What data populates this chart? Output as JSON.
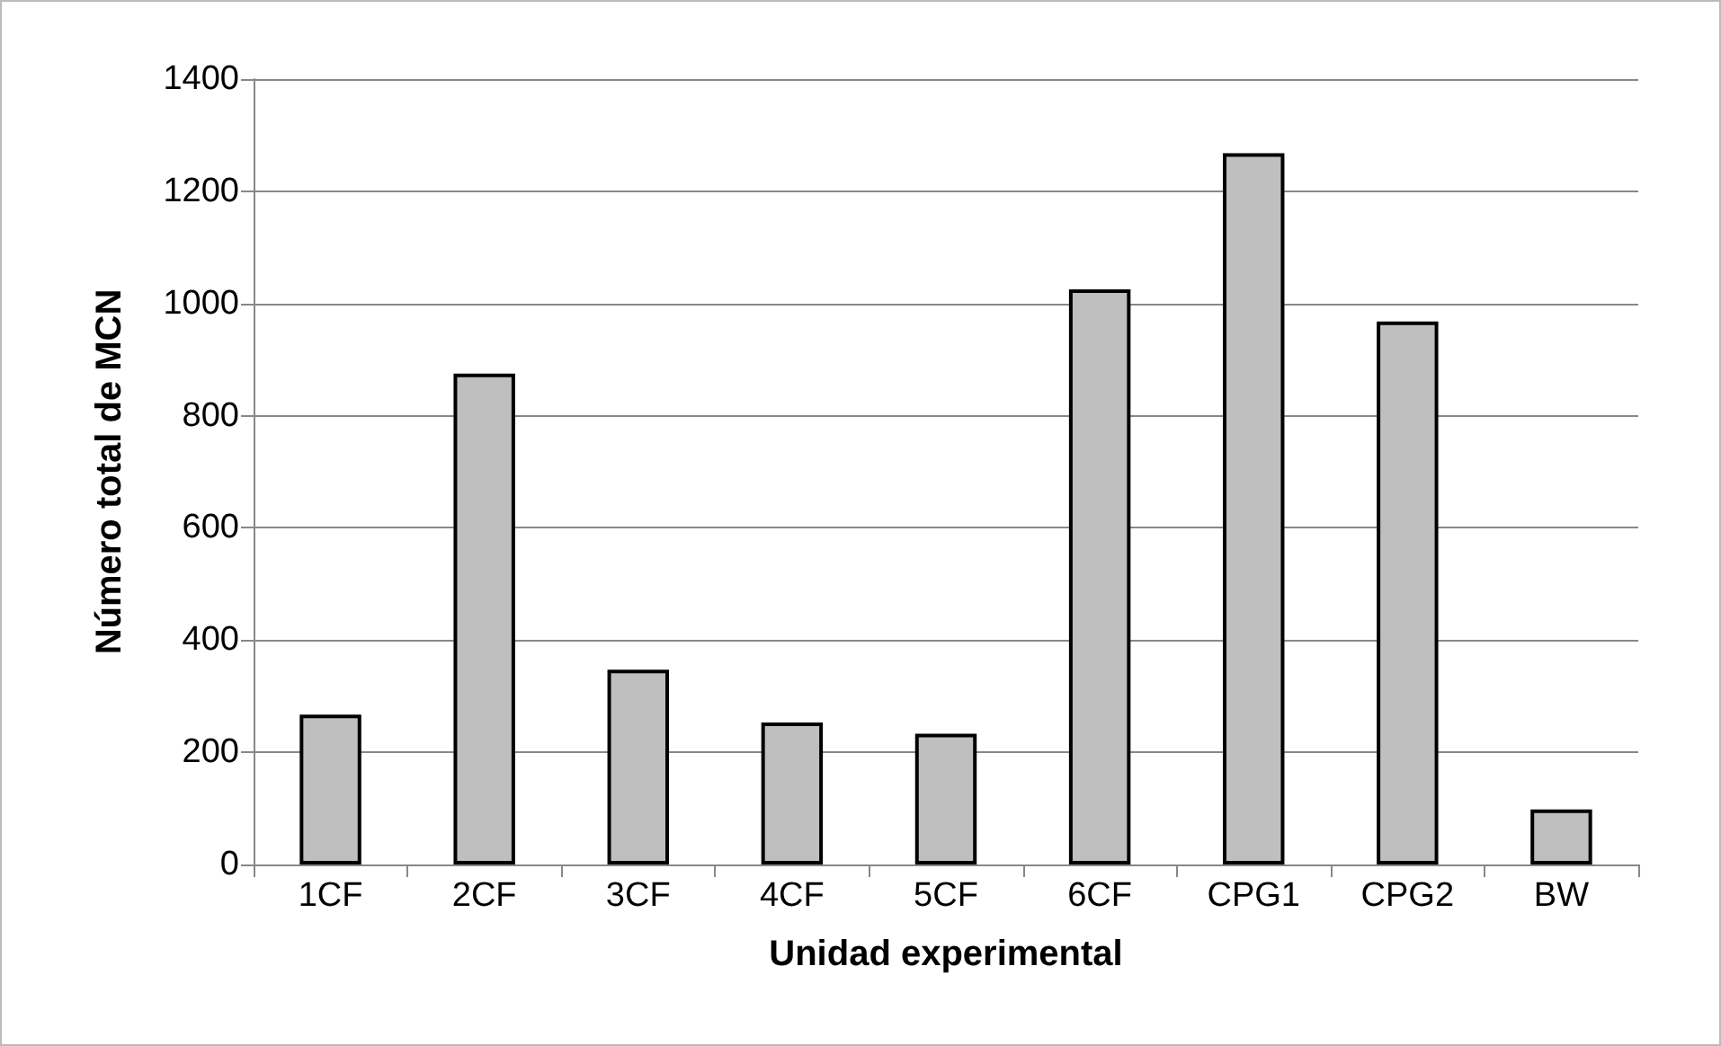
{
  "chart_data": {
    "type": "bar",
    "xlabel": "Unidad experimental",
    "ylabel": "Número total de MCN",
    "categories": [
      "1CF",
      "2CF",
      "3CF",
      "4CF",
      "5CF",
      "6CF",
      "CPG1",
      "CPG2",
      "BW"
    ],
    "values": [
      267,
      875,
      347,
      253,
      233,
      1025,
      1268,
      968,
      98
    ],
    "color": "#bfbfbf",
    "ylim": [
      0,
      1400
    ],
    "yticks": [
      0,
      200,
      400,
      600,
      800,
      1000,
      1200,
      1400
    ],
    "grid": "y"
  }
}
